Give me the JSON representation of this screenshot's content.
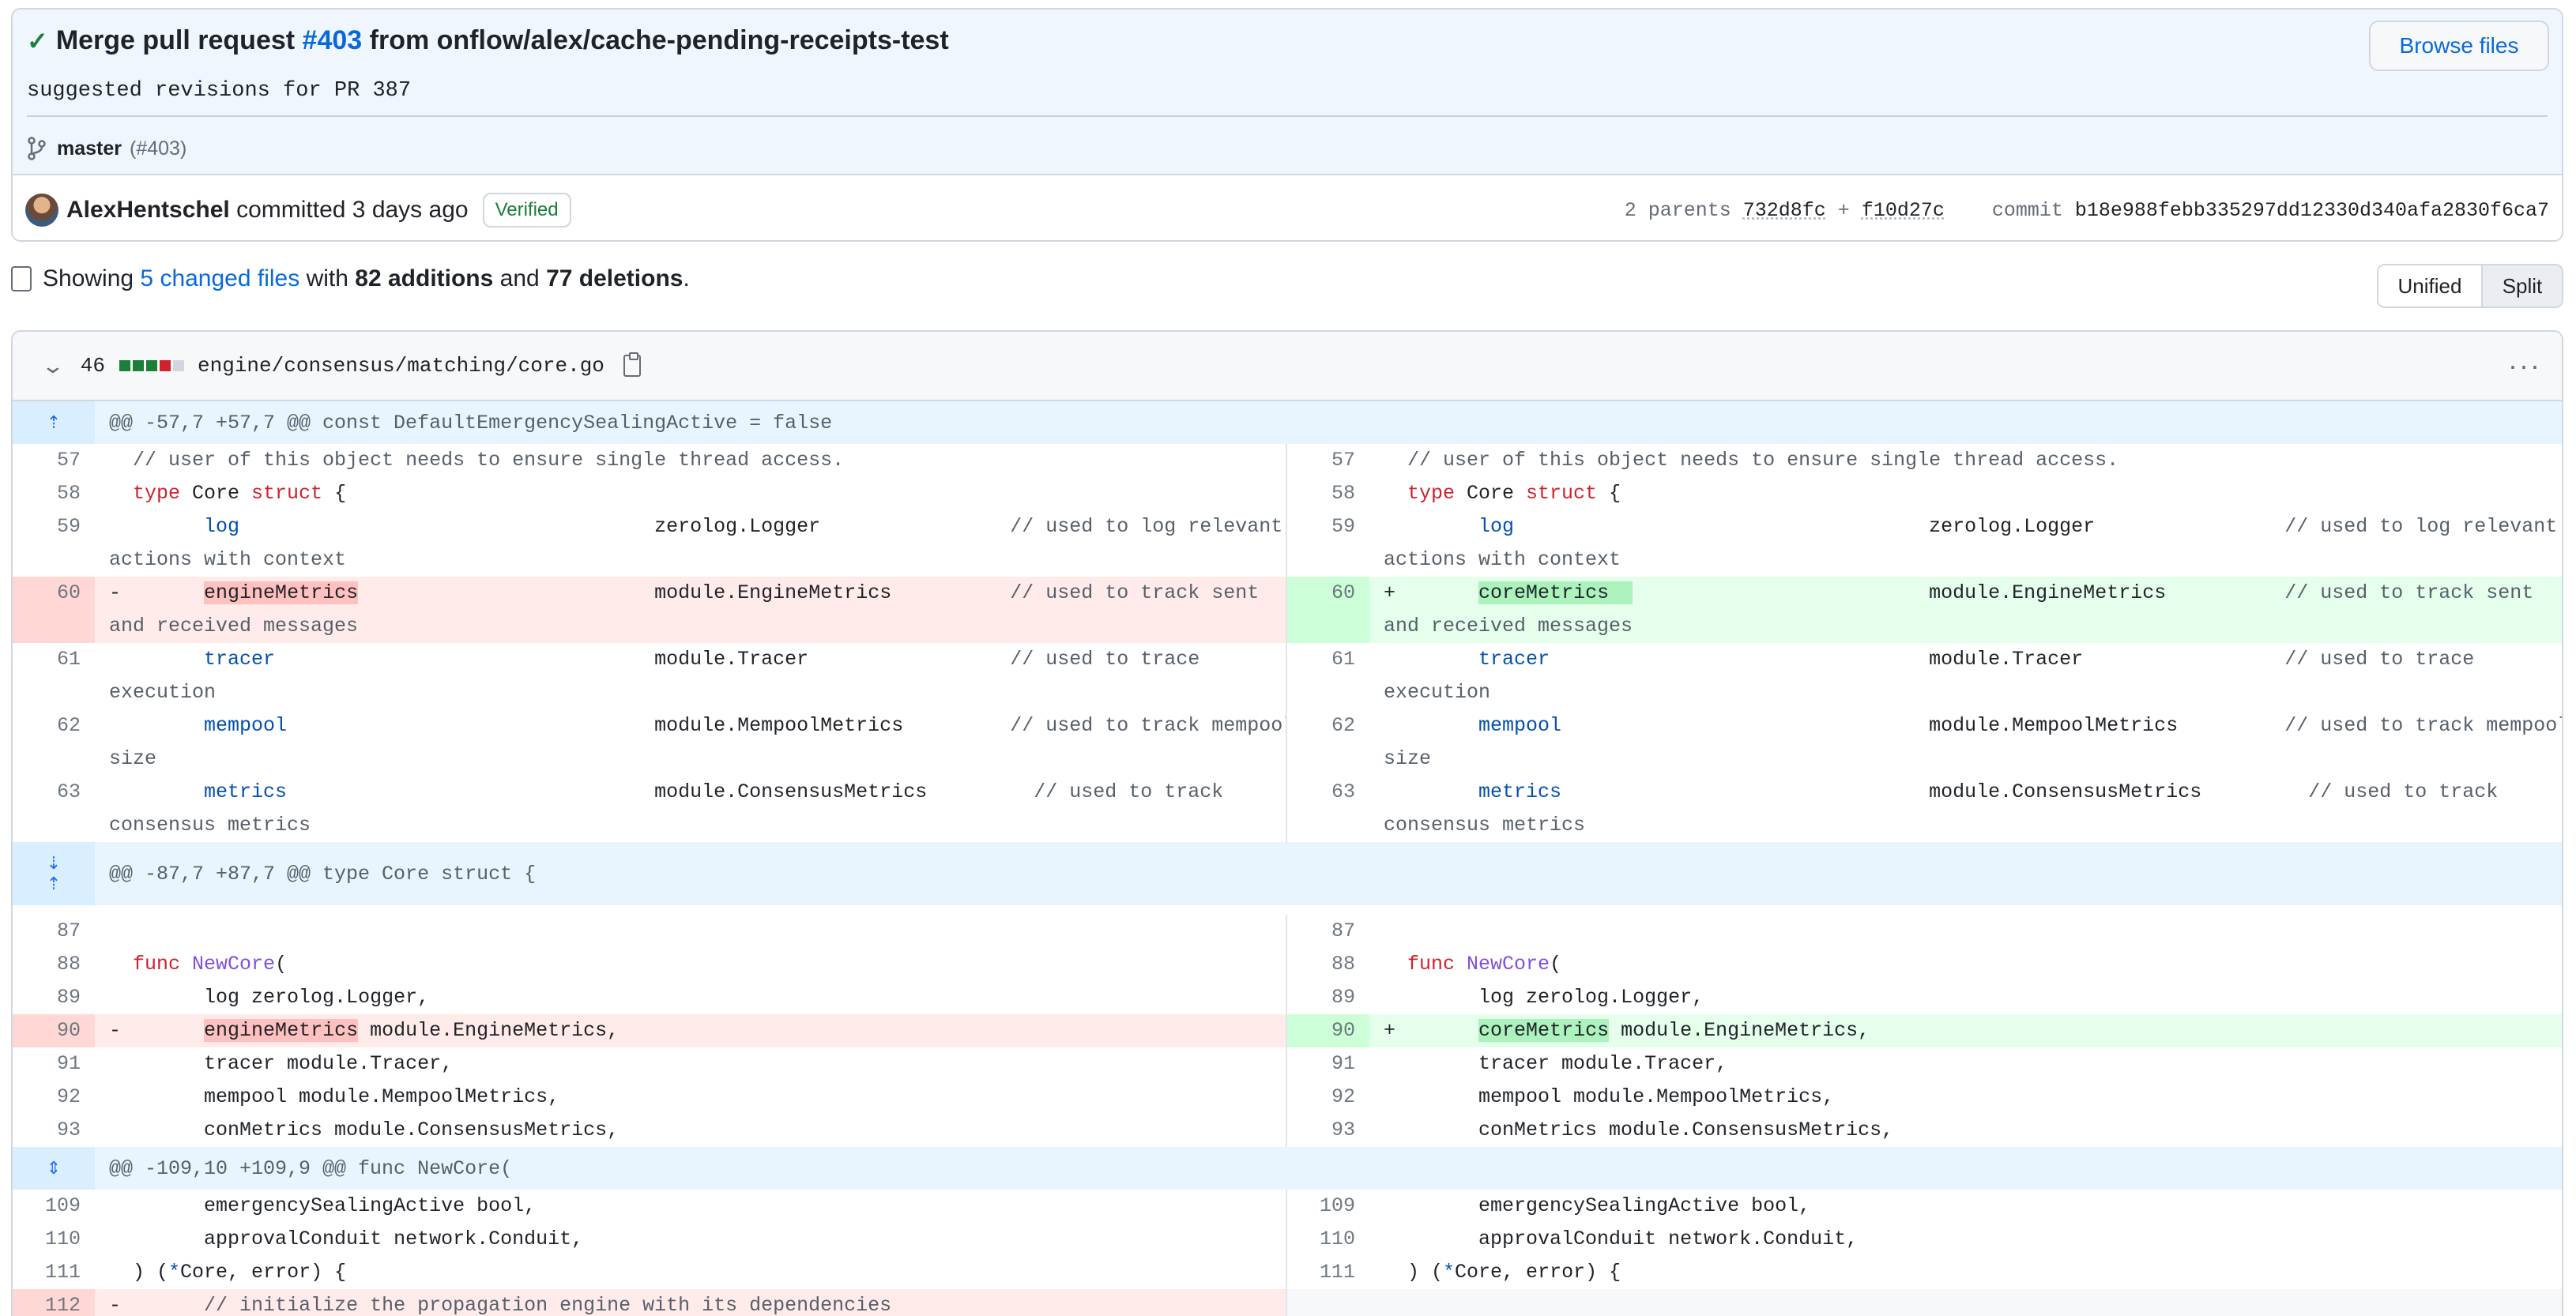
{
  "commit": {
    "title_prefix": "Merge pull request",
    "pr_number": "#403",
    "title_suffix": "from onflow/alex/cache-pending-receipts-test",
    "description": "suggested revisions for PR 387",
    "browse_label": "Browse files",
    "branch": "master",
    "branch_pr": "(#403)",
    "author": "AlexHentschel",
    "committed_text": "committed 3 days ago",
    "verified": "Verified",
    "parents_label": "2 parents",
    "parent1": "732d8fc",
    "plus": "+",
    "parent2": "f10d27c",
    "commit_label": "commit",
    "commit_sha": "b18e988febb335297dd12330d340afa2830f6ca7"
  },
  "stats": {
    "showing": "Showing",
    "changed_files": "5 changed files",
    "with": "with",
    "additions": "82 additions",
    "and": "and",
    "deletions": "77 deletions",
    "period": "."
  },
  "view": {
    "unified": "Unified",
    "split": "Split"
  },
  "file": {
    "changes": "46",
    "path": "engine/consensus/matching/core.go",
    "squares": [
      "#1a7f37",
      "#1a7f37",
      "#1a7f37",
      "#cf222e",
      "#d0d7de"
    ]
  },
  "hunks": [
    "@@ -57,7 +57,7 @@ const DefaultEmergencySealingActive = false",
    "@@ -87,7 +87,7 @@ type Core struct {",
    "@@ -109,10 +109,9 @@ func NewCore("
  ],
  "lines": {
    "l57": "57",
    "l58": "58",
    "l59": "59",
    "l60": "60",
    "l61": "61",
    "l62": "62",
    "l63": "63",
    "l87": "87",
    "l88": "88",
    "l89": "89",
    "l90": "90",
    "l91": "91",
    "l92": "92",
    "l93": "93",
    "l109": "109",
    "l110": "110",
    "l111": "111",
    "l112": "112",
    "c57": "// user of this object needs to ensure single thread access.",
    "c58a": "type",
    "c58b": " Core ",
    "c58c": "struct",
    "c58d": " {",
    "c59a": "log",
    "c59b": "zerolog.Logger",
    "c59c": "// used to log relevant",
    "c59d": "actions with context",
    "c60l": "engineMetrics",
    "c60r": "coreMetrics",
    "c60b": "module.EngineMetrics",
    "c60c": "// used to track sent",
    "c60d": "and received messages",
    "c61a": "tracer",
    "c61b": "module.Tracer",
    "c61c": "// used to trace",
    "c61d": "execution",
    "c62a": "mempool",
    "c62b": "module.MempoolMetrics",
    "c62c": "// used to track mempool",
    "c62d": "size",
    "c63a": "metrics",
    "c63b": "module.ConsensusMetrics",
    "c63c": "// used to track",
    "c63d": "consensus metrics",
    "c88a": "func",
    "c88b": "NewCore",
    "c88c": "(",
    "c89": "log zerolog.Logger,",
    "c90b": " module.EngineMetrics,",
    "c91": "tracer module.Tracer,",
    "c92": "mempool module.MempoolMetrics,",
    "c93": "conMetrics module.ConsensusMetrics,",
    "c109": "emergencySealingActive bool,",
    "c110": "approvalConduit network.Conduit,",
    "c111a": ") (",
    "c111b": "*",
    "c111c": "Core, error) {",
    "c112": "// initialize the propagation engine with its dependencies",
    "minus": "-",
    "plusSign": "+"
  }
}
